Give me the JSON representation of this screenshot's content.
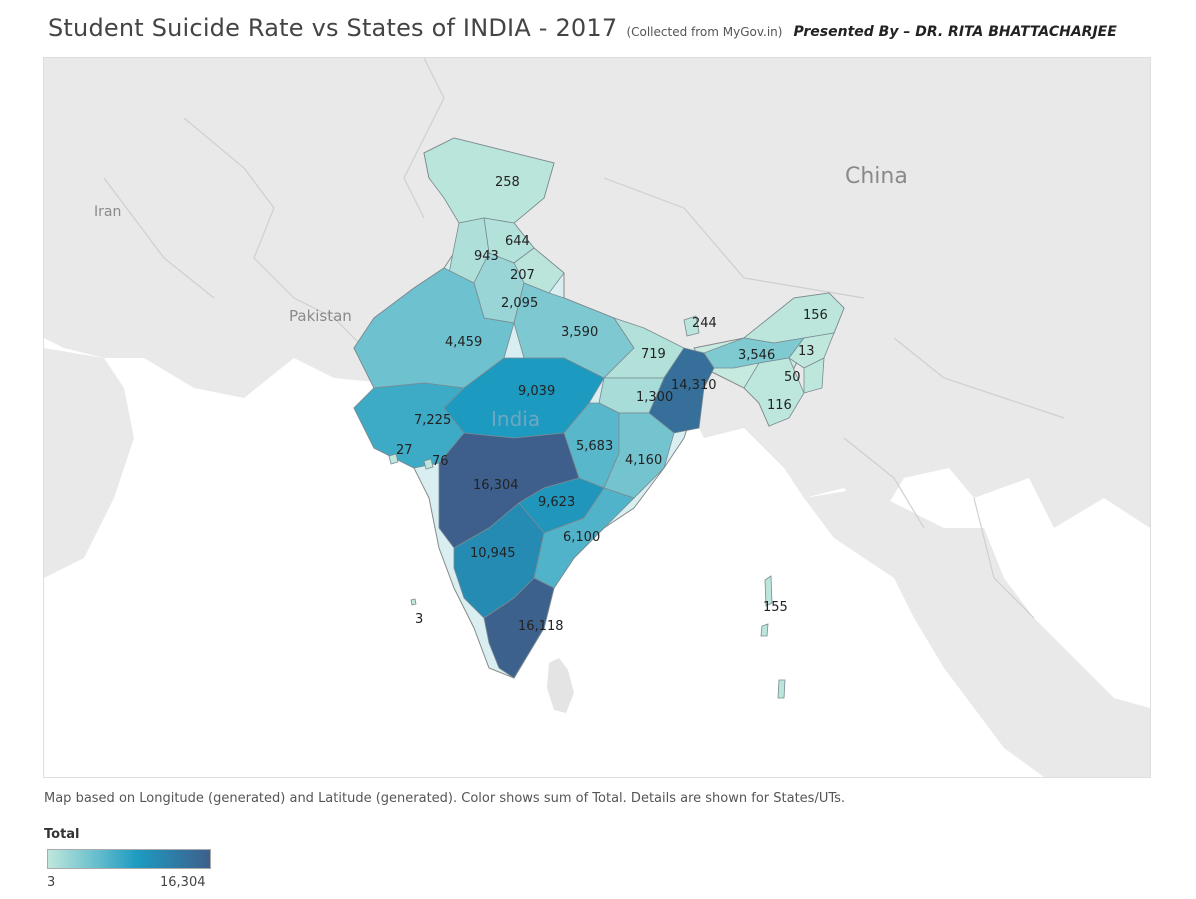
{
  "header": {
    "title": "Student Suicide Rate vs States of INDIA - 2017",
    "source": "(Collected from MyGov.in)",
    "author": "Presented By – DR. RITA BHATTACHARJEE"
  },
  "map": {
    "background_labels": [
      "China",
      "Iran",
      "Pakistan"
    ],
    "country_label": "India",
    "land_color": "#e9e9e9",
    "sea_color": "#ffffff",
    "region_values": [
      {
        "label": "258",
        "value": 258
      },
      {
        "label": "644",
        "value": 644
      },
      {
        "label": "943",
        "value": 943
      },
      {
        "label": "207",
        "value": 207
      },
      {
        "label": "2,095",
        "value": 2095
      },
      {
        "label": "4,459",
        "value": 4459
      },
      {
        "label": "3,590",
        "value": 3590
      },
      {
        "label": "244",
        "value": 244
      },
      {
        "label": "156",
        "value": 156
      },
      {
        "label": "719",
        "value": 719
      },
      {
        "label": "3,546",
        "value": 3546
      },
      {
        "label": "13",
        "value": 13
      },
      {
        "label": "14,310",
        "value": 14310
      },
      {
        "label": "50",
        "value": 50
      },
      {
        "label": "9,039",
        "value": 9039
      },
      {
        "label": "1,300",
        "value": 1300
      },
      {
        "label": "116",
        "value": 116
      },
      {
        "label": "7,225",
        "value": 7225
      },
      {
        "label": "5,683",
        "value": 5683
      },
      {
        "label": "27",
        "value": 27
      },
      {
        "label": "76",
        "value": 76
      },
      {
        "label": "4,160",
        "value": 4160
      },
      {
        "label": "16,304",
        "value": 16304
      },
      {
        "label": "9,623",
        "value": 9623
      },
      {
        "label": "6,100",
        "value": 6100
      },
      {
        "label": "10,945",
        "value": 10945
      },
      {
        "label": "155",
        "value": 155
      },
      {
        "label": "3",
        "value": 3
      },
      {
        "label": "16,118",
        "value": 16118
      }
    ]
  },
  "caption": "Map based on Longitude (generated) and Latitude (generated).  Color shows sum of Total.  Details are shown for States/UTs.",
  "legend": {
    "title": "Total",
    "min_label": "3",
    "max_label": "16,304",
    "min_value": 3,
    "max_value": 16304,
    "color_low": "#bfe7dc",
    "color_mid": "#1d9bc1",
    "color_high": "#3e5f8c"
  }
}
